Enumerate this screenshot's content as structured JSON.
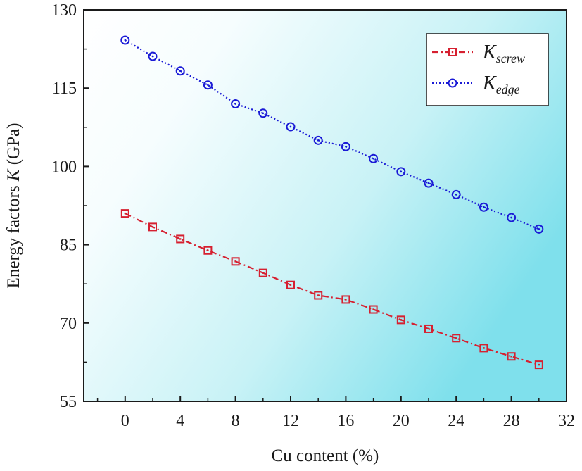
{
  "chart_data": {
    "type": "line",
    "xlabel": "Cu content (%)",
    "ylabel": "Energy factors K (GPa)",
    "xlim": [
      -3,
      32
    ],
    "ylim": [
      55,
      130
    ],
    "xticks": [
      0,
      4,
      8,
      12,
      16,
      20,
      24,
      28,
      32
    ],
    "yticks": [
      55,
      70,
      85,
      100,
      115,
      130
    ],
    "grid": false,
    "legend_position": "top-right",
    "x": [
      0,
      2,
      4,
      6,
      8,
      10,
      12,
      14,
      16,
      18,
      20,
      22,
      24,
      26,
      28,
      30
    ],
    "series": [
      {
        "name": "K_screw",
        "legend_main": "K",
        "legend_sub": "screw",
        "color": "#d62030",
        "marker": "square",
        "line_style": "dash-dot",
        "values": [
          91.0,
          88.4,
          86.1,
          83.9,
          81.8,
          79.6,
          77.3,
          75.3,
          74.5,
          72.6,
          70.6,
          68.9,
          67.1,
          65.2,
          63.6,
          62.0
        ]
      },
      {
        "name": "K_edge",
        "legend_main": "K",
        "legend_sub": "edge",
        "color": "#1a1ad6",
        "marker": "circle",
        "line_style": "dotted",
        "values": [
          124.2,
          121.1,
          118.3,
          115.6,
          112.0,
          110.2,
          107.6,
          105.0,
          103.8,
          101.5,
          99.0,
          96.8,
          94.6,
          92.2,
          90.2,
          88.0
        ]
      }
    ]
  }
}
